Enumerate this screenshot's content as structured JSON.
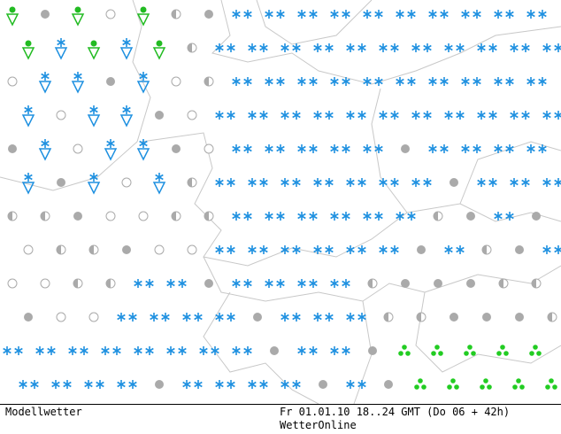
{
  "footer": {
    "left": "Modellwetter",
    "center": "Fr 01.01.10 18..24 GMT (Do 06 + 42h)",
    "brand": "WetterOnline"
  }
}
